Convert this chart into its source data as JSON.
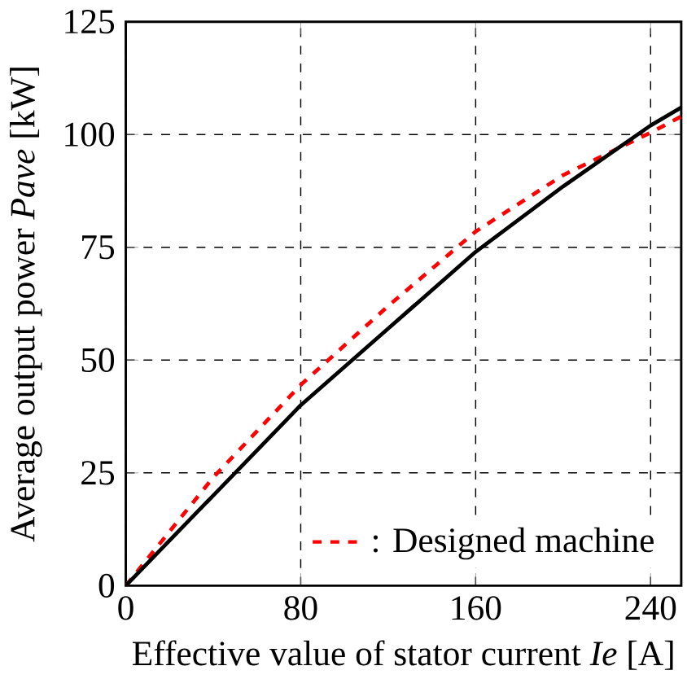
{
  "chart_data": {
    "type": "line",
    "xlabel": "Effective value of stator current *Ie* [A]",
    "ylabel": "Average output power *Pave* [kW]",
    "xlim": [
      0,
      254
    ],
    "ylim": [
      0,
      125
    ],
    "xticks": [
      0,
      80,
      160,
      240
    ],
    "yticks": [
      0,
      25,
      50,
      75,
      100,
      125
    ],
    "grid": true,
    "legend": "bottom right",
    "series": [
      {
        "name": ": Designed machine",
        "color": "#ff0000",
        "line_style": "dashed",
        "x": [
          0,
          40,
          80,
          120,
          160,
          200,
          240,
          254
        ],
        "values": [
          0,
          24,
          44.5,
          62,
          78.5,
          91,
          100.4,
          104
        ]
      },
      {
        "color": "#000000",
        "line_style": "solid",
        "x": [
          0,
          40,
          80,
          120,
          160,
          200,
          240,
          254
        ],
        "values": [
          0,
          20,
          40,
          57,
          74,
          88.5,
          102,
          106
        ]
      }
    ]
  }
}
